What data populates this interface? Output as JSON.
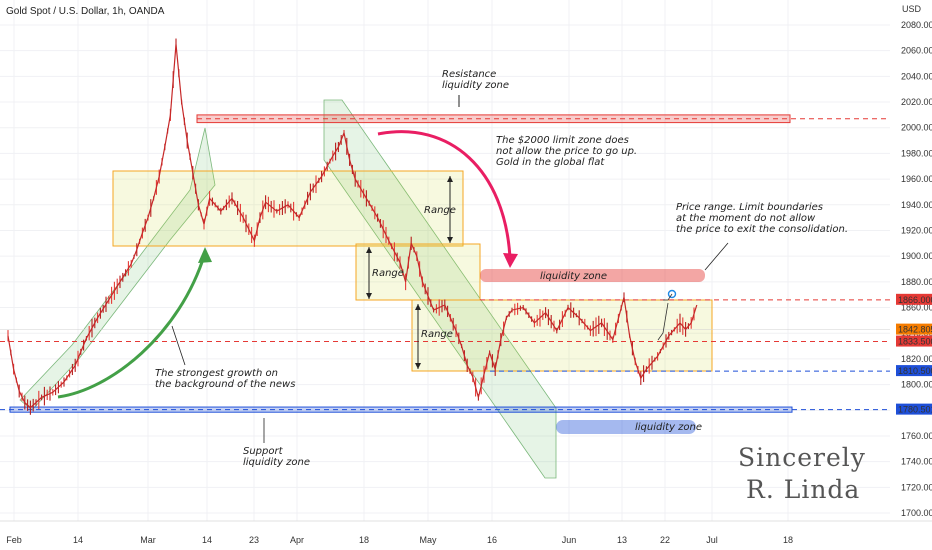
{
  "chart_data": {
    "type": "candlestick",
    "title": "Gold Spot / U.S. Dollar, 1h, OANDA",
    "currency": "USD",
    "ylim": [
      1690,
      2095
    ],
    "y_ticks": [
      1700,
      1720,
      1740,
      1760,
      1780,
      1800,
      1820,
      1840,
      1860,
      1880,
      1900,
      1920,
      1940,
      1960,
      1980,
      2000,
      2020,
      2040,
      2060,
      2080
    ],
    "x_ticks": [
      "Feb",
      "14",
      "Mar",
      "14",
      "23",
      "Apr",
      "18",
      "May",
      "16",
      "Jun",
      "13",
      "22",
      "Jul",
      "18"
    ],
    "price_path": [
      [
        0,
        1838
      ],
      [
        1,
        1812
      ],
      [
        2,
        1795
      ],
      [
        3,
        1786
      ],
      [
        4,
        1782
      ],
      [
        6,
        1790
      ],
      [
        8,
        1794
      ],
      [
        10,
        1802
      ],
      [
        12,
        1815
      ],
      [
        14,
        1836
      ],
      [
        16,
        1852
      ],
      [
        18,
        1866
      ],
      [
        20,
        1880
      ],
      [
        22,
        1894
      ],
      [
        23,
        1905
      ],
      [
        24,
        1918
      ],
      [
        25,
        1930
      ],
      [
        26,
        1945
      ],
      [
        27,
        1962
      ],
      [
        28,
        1985
      ],
      [
        29,
        2010
      ],
      [
        30,
        2065
      ],
      [
        31,
        2020
      ],
      [
        32,
        1990
      ],
      [
        33,
        1965
      ],
      [
        34,
        1940
      ],
      [
        35,
        1925
      ],
      [
        36,
        1945
      ],
      [
        38,
        1935
      ],
      [
        40,
        1945
      ],
      [
        42,
        1930
      ],
      [
        44,
        1912
      ],
      [
        45,
        1930
      ],
      [
        46,
        1942
      ],
      [
        48,
        1935
      ],
      [
        50,
        1940
      ],
      [
        52,
        1930
      ],
      [
        54,
        1950
      ],
      [
        56,
        1962
      ],
      [
        58,
        1978
      ],
      [
        59,
        1985
      ],
      [
        60,
        1996
      ],
      [
        61,
        1975
      ],
      [
        62,
        1960
      ],
      [
        64,
        1945
      ],
      [
        66,
        1930
      ],
      [
        68,
        1912
      ],
      [
        70,
        1895
      ],
      [
        71,
        1880
      ],
      [
        72,
        1910
      ],
      [
        73,
        1900
      ],
      [
        74,
        1880
      ],
      [
        76,
        1858
      ],
      [
        78,
        1862
      ],
      [
        80,
        1842
      ],
      [
        81,
        1830
      ],
      [
        82,
        1815
      ],
      [
        83,
        1806
      ],
      [
        84,
        1790
      ],
      [
        85,
        1808
      ],
      [
        86,
        1825
      ],
      [
        87,
        1812
      ],
      [
        88,
        1835
      ],
      [
        89,
        1852
      ],
      [
        90,
        1858
      ],
      [
        92,
        1860
      ],
      [
        94,
        1848
      ],
      [
        96,
        1856
      ],
      [
        98,
        1842
      ],
      [
        100,
        1860
      ],
      [
        102,
        1852
      ],
      [
        104,
        1842
      ],
      [
        106,
        1848
      ],
      [
        108,
        1835
      ],
      [
        110,
        1868
      ],
      [
        111,
        1838
      ],
      [
        112,
        1818
      ],
      [
        113,
        1805
      ],
      [
        114,
        1812
      ],
      [
        116,
        1822
      ],
      [
        118,
        1838
      ],
      [
        120,
        1848
      ],
      [
        121,
        1843
      ],
      [
        122,
        1848
      ],
      [
        123,
        1862
      ]
    ],
    "price_path_x_units": "candle index",
    "levels": [
      {
        "label": "1866.000",
        "price": 1866,
        "color": "#e53935"
      },
      {
        "label": "1842.805",
        "price": 1842.8,
        "color": "#f57c00"
      },
      {
        "label": "1833.500",
        "price": 1833.5,
        "color": "#e53935"
      },
      {
        "label": "1810.500",
        "price": 1810.5,
        "color": "#1e4fd8"
      },
      {
        "label": "1780.501",
        "price": 1780.5,
        "color": "#1e4fd8"
      }
    ],
    "resistance_level": 2006,
    "annotations": [
      {
        "text": "Resistance\nliquidity zone"
      },
      {
        "text": "The $2000 limit zone does\nnot allow the price to go up.\nGold in the global flat"
      },
      {
        "text": "Price range. Limit boundaries\nat the moment do not allow\nthe price to exit the consolidation."
      },
      {
        "text": "Range"
      },
      {
        "text": "Range"
      },
      {
        "text": "Range"
      },
      {
        "text": "liquidity zone"
      },
      {
        "text": "liquidity zone"
      },
      {
        "text": "The strongest growth on\nthe background of the news"
      },
      {
        "text": "Support\nliquidity zone"
      }
    ],
    "watermark": [
      "Sincerely",
      "R. Linda"
    ],
    "colors": {
      "up": "#26a69a",
      "down": "#e53935",
      "range": "#f5a623"
    }
  }
}
